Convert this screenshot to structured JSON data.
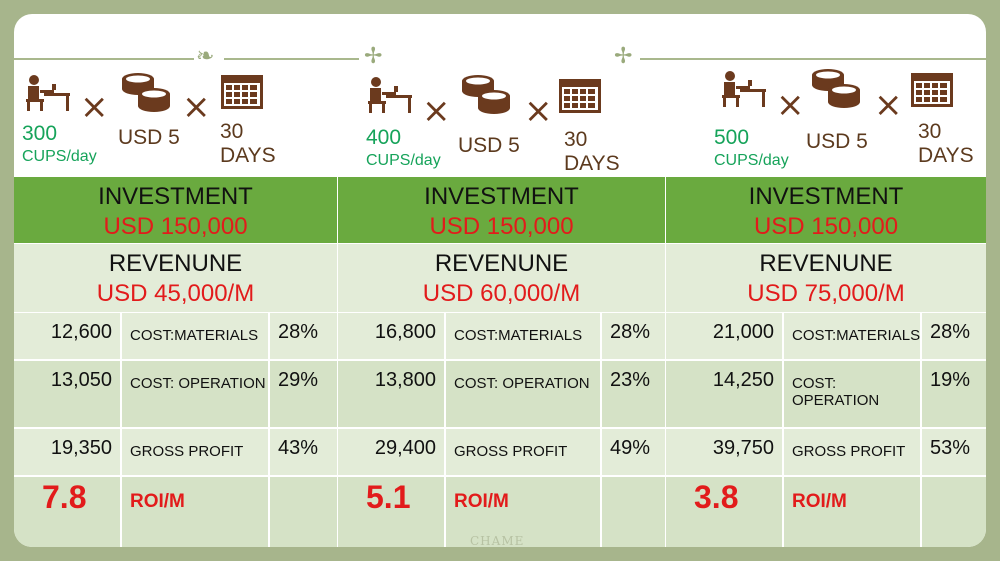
{
  "colors": {
    "frame": "#a7b58c",
    "investment_bg": "#6aaa3f",
    "light_bg": "#e3ecd8",
    "mid_bg": "#d5e2c6",
    "accent_red": "#e21b1b",
    "accent_green": "#16a35a",
    "brown": "#5c3a1e"
  },
  "icons": [
    "desk-person-icon",
    "coins-icon",
    "calendar-icon",
    "times-icon"
  ],
  "plans": [
    {
      "cups": "300",
      "cups_unit": "CUPS/day",
      "price": "USD 5",
      "days": "30",
      "days_unit": "DAYS",
      "investment_label": "INVESTMENT",
      "investment_value": "USD 150,000",
      "revenue_label": "REVENUNE",
      "revenue_value": "USD 45,000/M",
      "rows": [
        {
          "amount": "12,600",
          "label": "COST:MATERIALS",
          "percent": "28%"
        },
        {
          "amount": "13,050",
          "label": "COST: OPERATION",
          "percent": "29%"
        },
        {
          "amount": "19,350",
          "label": "GROSS PROFIT",
          "percent": "43%"
        }
      ],
      "roi_value": "7.8",
      "roi_label": "ROI/M"
    },
    {
      "cups": "400",
      "cups_unit": "CUPS/day",
      "price": "USD 5",
      "days": "30",
      "days_unit": "DAYS",
      "investment_label": "INVESTMENT",
      "investment_value": "USD 150,000",
      "revenue_label": "REVENUNE",
      "revenue_value": "USD 60,000/M",
      "rows": [
        {
          "amount": "16,800",
          "label": "COST:MATERIALS",
          "percent": "28%"
        },
        {
          "amount": "13,800",
          "label": "COST: OPERATION",
          "percent": "23%"
        },
        {
          "amount": "29,400",
          "label": "GROSS PROFIT",
          "percent": "49%"
        }
      ],
      "roi_value": "5.1",
      "roi_label": "ROI/M"
    },
    {
      "cups": "500",
      "cups_unit": "CUPS/day",
      "price": "USD 5",
      "days": "30",
      "days_unit": "DAYS",
      "investment_label": "INVESTMENT",
      "investment_value": "USD 150,000",
      "revenue_label": "REVENUNE",
      "revenue_value": "USD 75,000/M",
      "rows": [
        {
          "amount": "21,000",
          "label": "COST:MATERIALS",
          "percent": "28%"
        },
        {
          "amount": "14,250",
          "label": "COST: OPERATION",
          "percent": "19%"
        },
        {
          "amount": "39,750",
          "label": "GROSS PROFIT",
          "percent": "53%"
        }
      ],
      "roi_value": "3.8",
      "roi_label": "ROI/M"
    }
  ],
  "watermark": "CHAME"
}
